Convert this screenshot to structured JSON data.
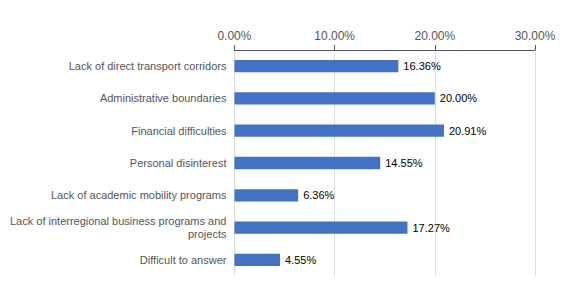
{
  "chart_data": {
    "type": "bar",
    "orientation": "horizontal",
    "categories": [
      "Difficult to answer",
      "Lack of interregional business programs and\nprojects",
      "Lack of academic mobility programs",
      "Personal disinterest",
      "Financial difficulties",
      "Administrative boundaries",
      "Lack of direct transport corridors"
    ],
    "values": [
      4.55,
      17.27,
      6.36,
      14.55,
      20.91,
      20.0,
      16.36
    ],
    "value_labels": [
      "4.55%",
      "17.27%",
      "6.36%",
      "14.55%",
      "20.91%",
      "20.00%",
      "16.36%"
    ],
    "data_labels": true,
    "color": "#4472c4",
    "xlim": [
      0,
      30
    ],
    "xticks": [
      {
        "value": 0,
        "label": "0.00%"
      },
      {
        "value": 10,
        "label": "10.00%"
      },
      {
        "value": 20,
        "label": "20.00%"
      },
      {
        "value": 30,
        "label": "30.00%"
      }
    ],
    "grid": true
  }
}
